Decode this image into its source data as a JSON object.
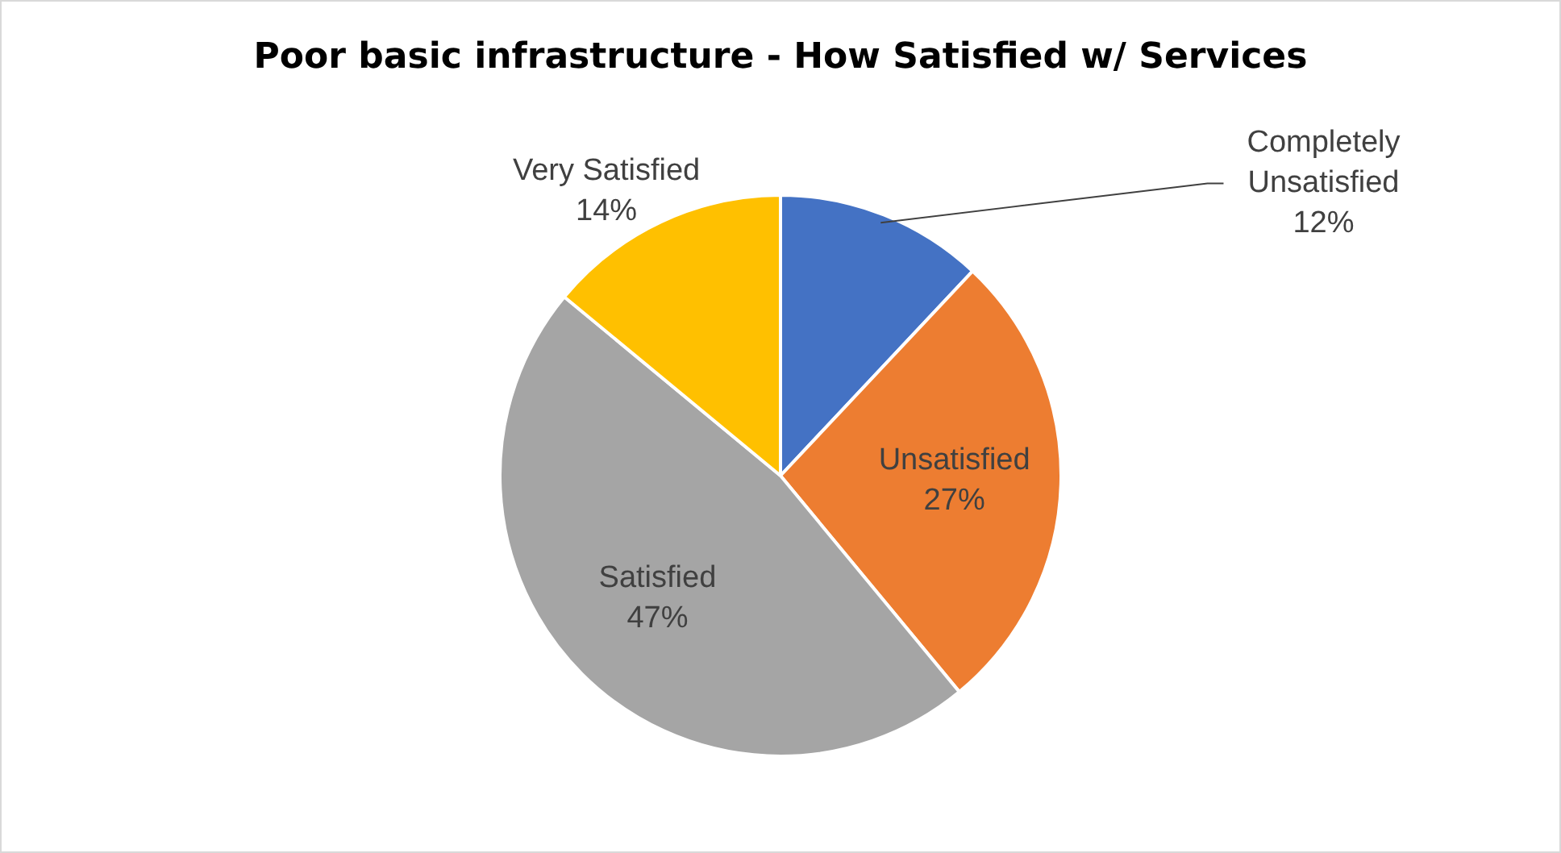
{
  "chart_data": {
    "type": "pie",
    "title": "Poor basic infrastructure - How Satisfied w/ Services",
    "categories": [
      "Completely Unsatisfied",
      "Unsatisfied",
      "Satisfied",
      "Very Satisfied"
    ],
    "values": [
      12,
      27,
      47,
      14
    ],
    "value_labels": [
      "12%",
      "27%",
      "47%",
      "14%"
    ],
    "colors": [
      "#4472c4",
      "#ed7d31",
      "#a5a5a5",
      "#ffc000"
    ],
    "legend": false
  }
}
